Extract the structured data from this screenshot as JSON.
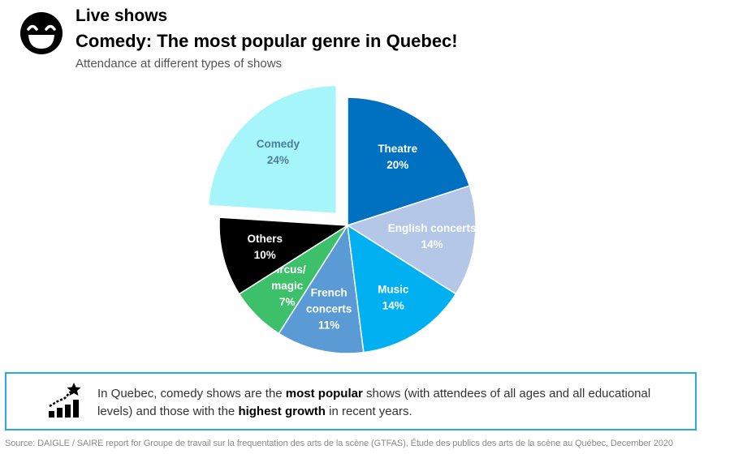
{
  "header": {
    "kicker": "Live shows",
    "title": "Comedy: The most popular genre in Quebec!",
    "subtitle": "Attendance at different types of shows"
  },
  "chart_data": {
    "type": "pie",
    "slices": [
      {
        "label_lines": [
          "Theatre"
        ],
        "value": 20,
        "value_label": "20%",
        "color": "#0070c0",
        "text_color": "#ffffff"
      },
      {
        "label_lines": [
          "English concerts"
        ],
        "value": 14,
        "value_label": "14%",
        "color": "#b4c7e7",
        "text_color": "#ffffff"
      },
      {
        "label_lines": [
          "Music"
        ],
        "value": 14,
        "value_label": "14%",
        "color": "#00b0f0",
        "text_color": "#ffffff"
      },
      {
        "label_lines": [
          "French",
          "concerts"
        ],
        "value": 11,
        "value_label": "11%",
        "color": "#5b9bd5",
        "text_color": "#ffffff"
      },
      {
        "label_lines": [
          "Circus/",
          "magic"
        ],
        "value": 7,
        "value_label": "7%",
        "color": "#3cc06a",
        "text_color": "#ffffff"
      },
      {
        "label_lines": [
          "Others"
        ],
        "value": 10,
        "value_label": "10%",
        "color": "#000000",
        "text_color": "#ffffff"
      },
      {
        "label_lines": [
          "Comedy"
        ],
        "value": 24,
        "value_label": "24%",
        "color": "#a5f5fb",
        "text_color": "#4a7f98",
        "exploded": true
      }
    ]
  },
  "note": {
    "icon": "growth-chart-star-icon",
    "t1": "In Quebec, comedy shows are the ",
    "b1": "most popular",
    "t2": " shows (with attendees of all ages and all educational levels) and those with the ",
    "b2": "highest growth",
    "t3": " in recent years."
  },
  "source": "Source: DAIGLE / SAIRE report for Groupe de travail sur la frequentation des arts de la scène (GTFAS), Étude des publics des arts de la scène au Québec, December 2020"
}
